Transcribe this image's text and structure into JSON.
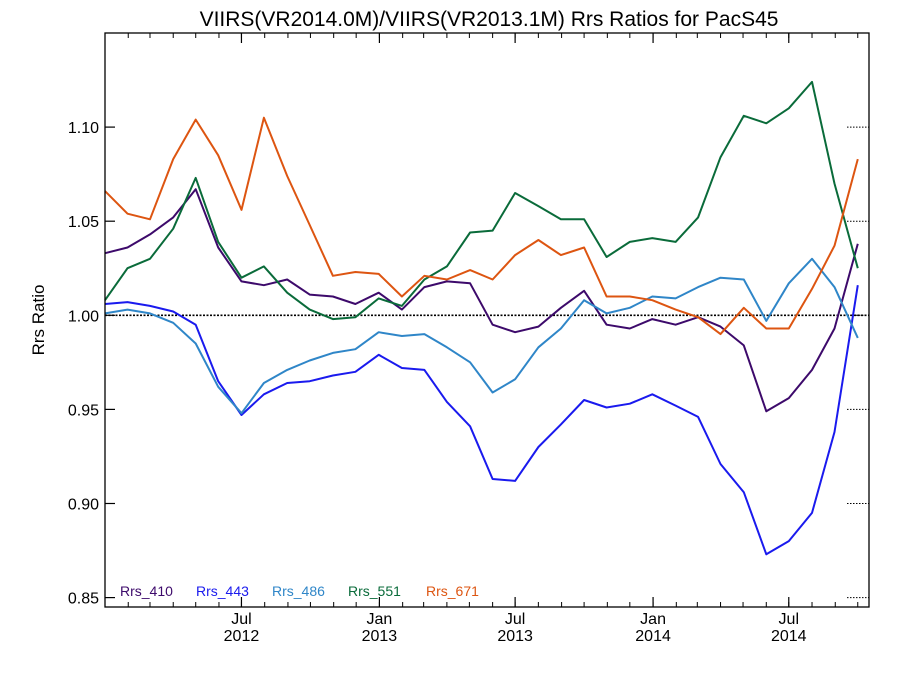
{
  "chart_data": {
    "type": "line",
    "title": "VIIRS(VR2014.0M)/VIIRS(VR2013.1M)  Rrs Ratios for PacS45",
    "xlabel": "",
    "ylabel": "Rrs Ratio",
    "xlim": [
      "2012-01-01",
      "2014-10-16"
    ],
    "ylim": [
      0.845,
      1.15
    ],
    "yticks": [
      0.85,
      0.9,
      0.95,
      1.0,
      1.05,
      1.1
    ],
    "ytick_labels": [
      "0.85",
      "0.90",
      "0.95",
      "1.00",
      "1.05",
      "1.10"
    ],
    "xticks": [
      {
        "x": "2012-07-01",
        "label_top": "Jul",
        "label_bottom": "2012"
      },
      {
        "x": "2013-01-01",
        "label_top": "Jan",
        "label_bottom": "2013"
      },
      {
        "x": "2013-07-01",
        "label_top": "Jul",
        "label_bottom": "2013"
      },
      {
        "x": "2014-01-01",
        "label_top": "Jan",
        "label_bottom": "2014"
      },
      {
        "x": "2014-07-01",
        "label_top": "Jul",
        "label_bottom": "2014"
      }
    ],
    "reference_line": 1.0,
    "legend_placement": "bottom-left",
    "x": [
      "2012-01-01",
      "2012-01-31",
      "2012-03-01",
      "2012-04-01",
      "2012-05-01",
      "2012-05-31",
      "2012-07-01",
      "2012-07-31",
      "2012-08-31",
      "2012-09-30",
      "2012-10-31",
      "2012-11-30",
      "2012-12-31",
      "2013-01-31",
      "2013-03-02",
      "2013-04-01",
      "2013-05-02",
      "2013-06-01",
      "2013-07-01",
      "2013-08-01",
      "2013-08-31",
      "2013-10-01",
      "2013-10-31",
      "2013-12-01",
      "2013-12-31",
      "2014-01-31",
      "2014-03-02",
      "2014-04-01",
      "2014-05-02",
      "2014-06-01",
      "2014-07-01",
      "2014-08-01",
      "2014-08-31",
      "2014-10-01"
    ],
    "series": [
      {
        "name": "Rrs_410",
        "color": "#3d0a6b",
        "values": [
          1.033,
          1.036,
          1.043,
          1.052,
          1.067,
          1.036,
          1.018,
          1.016,
          1.019,
          1.011,
          1.01,
          1.006,
          1.012,
          1.003,
          1.015,
          1.018,
          1.017,
          0.995,
          0.991,
          0.994,
          1.004,
          1.013,
          0.995,
          0.993,
          0.998,
          0.995,
          0.999,
          0.994,
          0.984,
          0.949,
          0.956,
          0.971,
          0.993,
          1.038
        ]
      },
      {
        "name": "Rrs_443",
        "color": "#1a1aee",
        "values": [
          1.006,
          1.007,
          1.005,
          1.002,
          0.995,
          0.965,
          0.947,
          0.958,
          0.964,
          0.965,
          0.968,
          0.97,
          0.979,
          0.972,
          0.971,
          0.954,
          0.941,
          0.913,
          0.912,
          0.93,
          0.942,
          0.955,
          0.951,
          0.953,
          0.958,
          0.952,
          0.946,
          0.921,
          0.906,
          0.873,
          0.88,
          0.895,
          0.938,
          1.016
        ]
      },
      {
        "name": "Rrs_486",
        "color": "#2f86c8",
        "values": [
          1.001,
          1.003,
          1.001,
          0.996,
          0.985,
          0.962,
          0.948,
          0.964,
          0.971,
          0.976,
          0.98,
          0.982,
          0.991,
          0.989,
          0.99,
          0.983,
          0.975,
          0.959,
          0.966,
          0.983,
          0.993,
          1.008,
          1.001,
          1.004,
          1.01,
          1.009,
          1.015,
          1.02,
          1.019,
          0.997,
          1.017,
          1.03,
          1.015,
          0.988
        ]
      },
      {
        "name": "Rrs_551",
        "color": "#0a6b3a",
        "values": [
          1.008,
          1.025,
          1.03,
          1.046,
          1.073,
          1.039,
          1.02,
          1.026,
          1.012,
          1.003,
          0.998,
          0.999,
          1.009,
          1.005,
          1.019,
          1.026,
          1.044,
          1.045,
          1.065,
          1.058,
          1.051,
          1.051,
          1.031,
          1.039,
          1.041,
          1.039,
          1.052,
          1.084,
          1.106,
          1.102,
          1.11,
          1.124,
          1.07,
          1.025
        ]
      },
      {
        "name": "Rrs_671",
        "color": "#dd5511",
        "values": [
          1.066,
          1.054,
          1.051,
          1.083,
          1.104,
          1.085,
          1.056,
          1.105,
          1.074,
          1.048,
          1.021,
          1.023,
          1.022,
          1.01,
          1.021,
          1.019,
          1.024,
          1.019,
          1.032,
          1.04,
          1.032,
          1.036,
          1.01,
          1.01,
          1.008,
          1.003,
          0.999,
          0.99,
          1.004,
          0.993,
          0.993,
          1.014,
          1.037,
          1.083
        ]
      }
    ]
  }
}
